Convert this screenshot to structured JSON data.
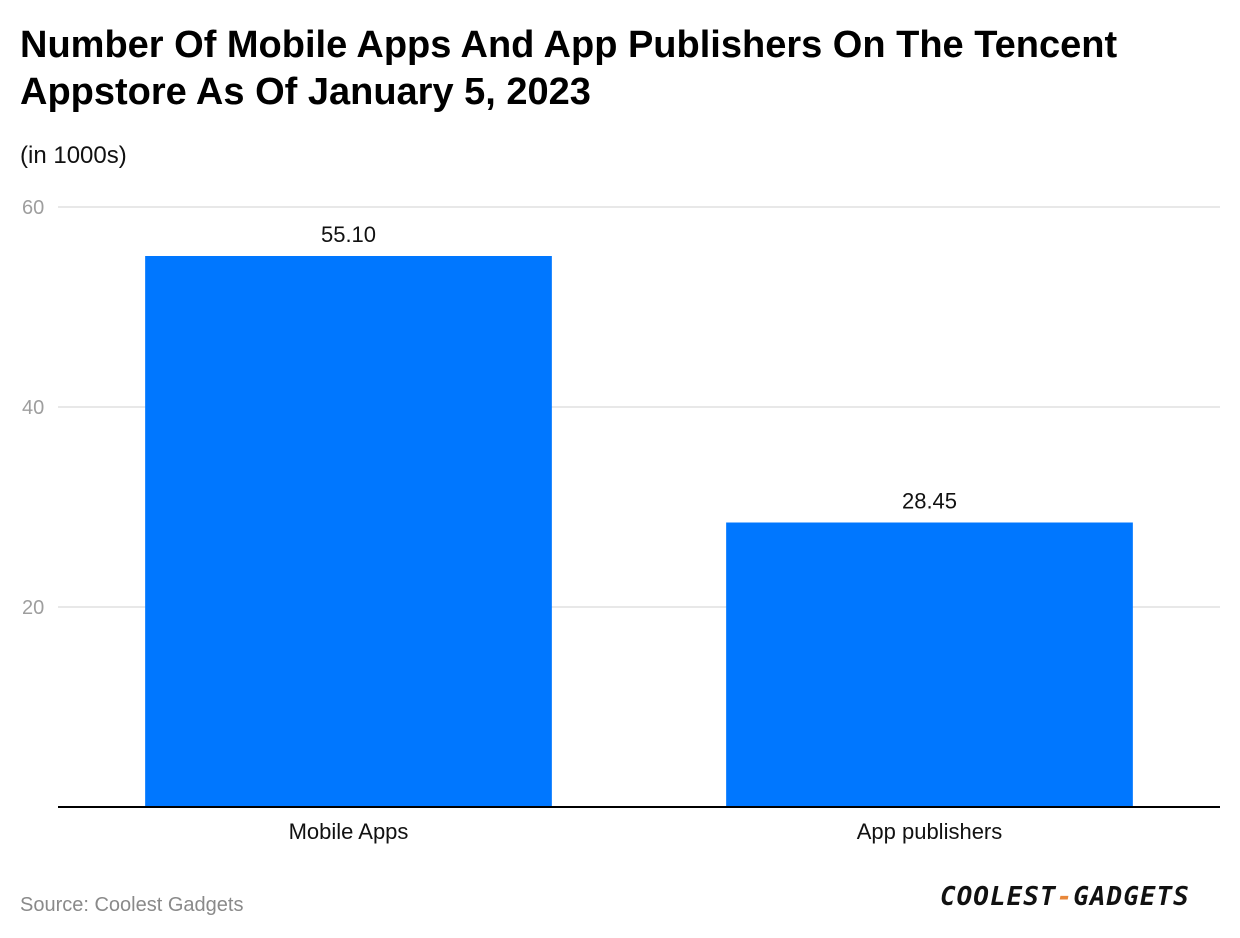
{
  "title": "Number Of Mobile Apps And App Publishers On The Tencent Appstore As Of January 5, 2023",
  "subtitle": "(in 1000s)",
  "source": "Source: Coolest Gadgets",
  "logo": {
    "left": "COOLEST",
    "dash": "-",
    "right": "GADGETS"
  },
  "colors": {
    "bar": "#0077ff",
    "grid": "#e0e0e0",
    "axis": "#000000",
    "accent": "#e8873a"
  },
  "chart_data": {
    "type": "bar",
    "categories": [
      "Mobile Apps",
      "App publishers"
    ],
    "values": [
      55.1,
      28.45
    ],
    "value_labels": [
      "55.10",
      "28.45"
    ],
    "title": "Number Of Mobile Apps And App Publishers On The Tencent Appstore As Of January 5, 2023",
    "xlabel": "",
    "ylabel": "",
    "ylim": [
      0,
      60
    ],
    "yticks": [
      20,
      40,
      60
    ],
    "grid": true,
    "legend": "none"
  }
}
